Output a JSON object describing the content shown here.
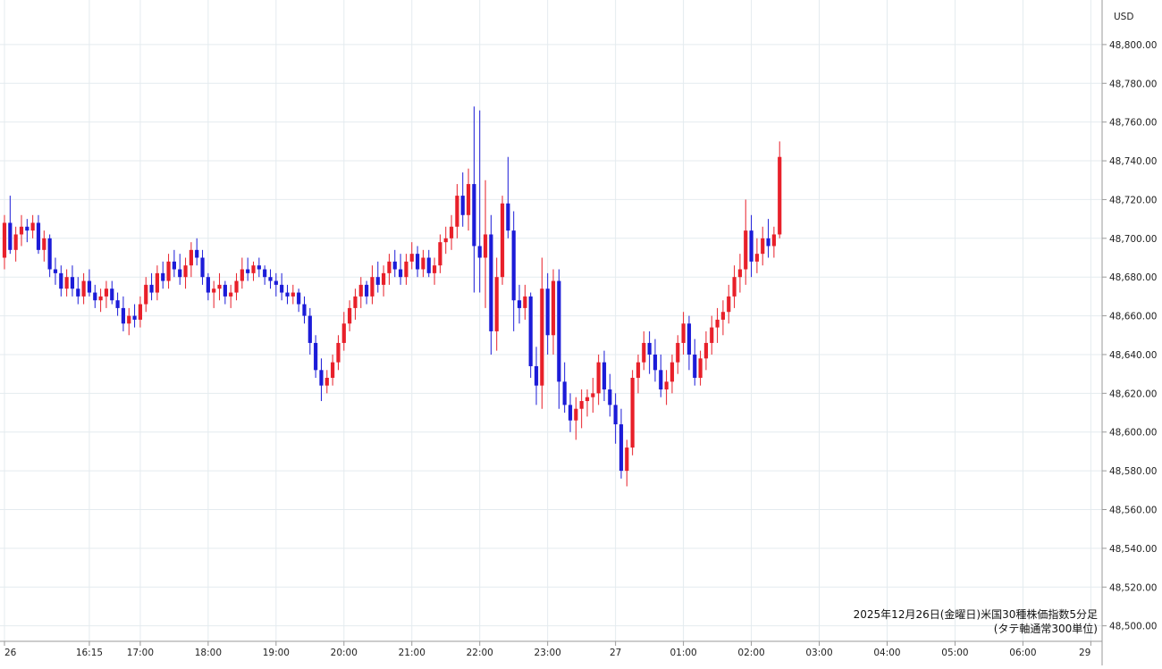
{
  "chart_data": {
    "type": "candlestick",
    "currency": "USD",
    "note_lines": [
      "2025年12月26日(金曜日)米国30種株価指数5分足",
      "(タテ軸通常300単位)"
    ],
    "y_ticks": [
      48500,
      48520,
      48540,
      48560,
      48580,
      48600,
      48620,
      48640,
      48660,
      48680,
      48700,
      48720,
      48740,
      48760,
      48780,
      48800
    ],
    "y_tick_labels": [
      "48,500.00",
      "48,520.00",
      "48,540.00",
      "48,560.00",
      "48,580.00",
      "48,600.00",
      "48,620.00",
      "48,640.00",
      "48,660.00",
      "48,680.00",
      "48,700.00",
      "48,720.00",
      "48,740.00",
      "48,760.00",
      "48,780.00",
      "48,800.00"
    ],
    "ylim": [
      48492,
      48823
    ],
    "x_ticks": [
      {
        "index": 0,
        "label": "26"
      },
      {
        "index": 15,
        "label": "16:15"
      },
      {
        "index": 24,
        "label": "17:00"
      },
      {
        "index": 36,
        "label": "18:00"
      },
      {
        "index": 48,
        "label": "19:00"
      },
      {
        "index": 60,
        "label": "20:00"
      },
      {
        "index": 72,
        "label": "21:00"
      },
      {
        "index": 84,
        "label": "22:00"
      },
      {
        "index": 96,
        "label": "23:00"
      },
      {
        "index": 108,
        "label": "27"
      },
      {
        "index": 120,
        "label": "01:00"
      },
      {
        "index": 132,
        "label": "02:00"
      },
      {
        "index": 144,
        "label": "03:00"
      },
      {
        "index": 156,
        "label": "04:00"
      },
      {
        "index": 168,
        "label": "05:00"
      },
      {
        "index": 180,
        "label": "06:00"
      },
      {
        "index": 192,
        "label": "29"
      }
    ],
    "up_color": "#e8202a",
    "down_color": "#1c1cd8",
    "candles": [
      [
        48690,
        48712,
        48684,
        48708
      ],
      [
        48708,
        48722,
        48692,
        48694
      ],
      [
        48694,
        48706,
        48688,
        48702
      ],
      [
        48702,
        48712,
        48696,
        48706
      ],
      [
        48706,
        48710,
        48698,
        48704
      ],
      [
        48704,
        48712,
        48700,
        48708
      ],
      [
        48708,
        48712,
        48692,
        48694
      ],
      [
        48694,
        48704,
        48688,
        48700
      ],
      [
        48700,
        48702,
        48680,
        48684
      ],
      [
        48684,
        48690,
        48676,
        48682
      ],
      [
        48682,
        48686,
        48670,
        48674
      ],
      [
        48674,
        48684,
        48670,
        48680
      ],
      [
        48680,
        48686,
        48670,
        48674
      ],
      [
        48674,
        48680,
        48666,
        48670
      ],
      [
        48670,
        48682,
        48666,
        48678
      ],
      [
        48678,
        48684,
        48670,
        48672
      ],
      [
        48672,
        48676,
        48664,
        48668
      ],
      [
        48668,
        48674,
        48662,
        48670
      ],
      [
        48670,
        48678,
        48664,
        48674
      ],
      [
        48674,
        48678,
        48666,
        48668
      ],
      [
        48668,
        48672,
        48660,
        48664
      ],
      [
        48664,
        48670,
        48652,
        48656
      ],
      [
        48656,
        48664,
        48650,
        48660
      ],
      [
        48660,
        48666,
        48654,
        48658
      ],
      [
        48658,
        48670,
        48654,
        48666
      ],
      [
        48666,
        48680,
        48662,
        48676
      ],
      [
        48676,
        48682,
        48668,
        48672
      ],
      [
        48672,
        48686,
        48668,
        48682
      ],
      [
        48682,
        48688,
        48674,
        48678
      ],
      [
        48678,
        48692,
        48674,
        48688
      ],
      [
        48688,
        48694,
        48680,
        48684
      ],
      [
        48684,
        48692,
        48676,
        48680
      ],
      [
        48680,
        48690,
        48674,
        48686
      ],
      [
        48686,
        48698,
        48680,
        48694
      ],
      [
        48694,
        48700,
        48686,
        48690
      ],
      [
        48690,
        48694,
        48676,
        48680
      ],
      [
        48680,
        48682,
        48668,
        48672
      ],
      [
        48672,
        48678,
        48664,
        48674
      ],
      [
        48674,
        48682,
        48668,
        48676
      ],
      [
        48676,
        48678,
        48666,
        48670
      ],
      [
        48670,
        48676,
        48664,
        48672
      ],
      [
        48672,
        48682,
        48668,
        48678
      ],
      [
        48678,
        48690,
        48674,
        48684
      ],
      [
        48684,
        48690,
        48678,
        48682
      ],
      [
        48682,
        48688,
        48678,
        48686
      ],
      [
        48686,
        48690,
        48680,
        48684
      ],
      [
        48684,
        48686,
        48676,
        48680
      ],
      [
        48680,
        48684,
        48674,
        48678
      ],
      [
        48678,
        48682,
        48670,
        48676
      ],
      [
        48676,
        48682,
        48668,
        48672
      ],
      [
        48672,
        48676,
        48666,
        48670
      ],
      [
        48670,
        48676,
        48666,
        48672
      ],
      [
        48672,
        48674,
        48662,
        48666
      ],
      [
        48666,
        48670,
        48656,
        48660
      ],
      [
        48660,
        48664,
        48640,
        48646
      ],
      [
        48646,
        48650,
        48628,
        48632
      ],
      [
        48632,
        48638,
        48616,
        48624
      ],
      [
        48624,
        48632,
        48620,
        48628
      ],
      [
        48628,
        48640,
        48624,
        48636
      ],
      [
        48636,
        48650,
        48632,
        48646
      ],
      [
        48646,
        48662,
        48642,
        48656
      ],
      [
        48656,
        48668,
        48652,
        48664
      ],
      [
        48664,
        48674,
        48658,
        48670
      ],
      [
        48670,
        48680,
        48664,
        48676
      ],
      [
        48676,
        48678,
        48666,
        48670
      ],
      [
        48670,
        48686,
        48666,
        48680
      ],
      [
        48680,
        48688,
        48672,
        48676
      ],
      [
        48676,
        48686,
        48670,
        48682
      ],
      [
        48682,
        48692,
        48676,
        48688
      ],
      [
        48688,
        48694,
        48680,
        48684
      ],
      [
        48684,
        48692,
        48676,
        48680
      ],
      [
        48680,
        48692,
        48676,
        48688
      ],
      [
        48688,
        48698,
        48684,
        48692
      ],
      [
        48692,
        48696,
        48680,
        48684
      ],
      [
        48684,
        48694,
        48680,
        48690
      ],
      [
        48690,
        48694,
        48680,
        48682
      ],
      [
        48682,
        48690,
        48676,
        48686
      ],
      [
        48686,
        48702,
        48682,
        48698
      ],
      [
        48698,
        48706,
        48692,
        48700
      ],
      [
        48700,
        48712,
        48694,
        48706
      ],
      [
        48706,
        48728,
        48700,
        48722
      ],
      [
        48722,
        48734,
        48706,
        48712
      ],
      [
        48712,
        48736,
        48704,
        48728
      ],
      [
        48728,
        48768,
        48672,
        48696
      ],
      [
        48696,
        48766,
        48672,
        48690
      ],
      [
        48690,
        48730,
        48664,
        48702
      ],
      [
        48702,
        48712,
        48640,
        48652
      ],
      [
        48652,
        48690,
        48642,
        48680
      ],
      [
        48680,
        48722,
        48676,
        48718
      ],
      [
        48718,
        48742,
        48700,
        48704
      ],
      [
        48704,
        48714,
        48652,
        48668
      ],
      [
        48668,
        48676,
        48656,
        48664
      ],
      [
        48664,
        48676,
        48658,
        48670
      ],
      [
        48670,
        48672,
        48628,
        48634
      ],
      [
        48634,
        48644,
        48614,
        48624
      ],
      [
        48624,
        48690,
        48612,
        48674
      ],
      [
        48674,
        48682,
        48640,
        48650
      ],
      [
        48650,
        48684,
        48640,
        48678
      ],
      [
        48678,
        48684,
        48612,
        48626
      ],
      [
        48626,
        48636,
        48610,
        48614
      ],
      [
        48614,
        48620,
        48600,
        48606
      ],
      [
        48606,
        48618,
        48596,
        48612
      ],
      [
        48612,
        48622,
        48602,
        48616
      ],
      [
        48616,
        48622,
        48608,
        48618
      ],
      [
        48618,
        48628,
        48610,
        48620
      ],
      [
        48620,
        48640,
        48614,
        48636
      ],
      [
        48636,
        48642,
        48616,
        48622
      ],
      [
        48622,
        48630,
        48608,
        48614
      ],
      [
        48614,
        48620,
        48594,
        48604
      ],
      [
        48604,
        48612,
        48576,
        48580
      ],
      [
        48580,
        48596,
        48572,
        48592
      ],
      [
        48592,
        48632,
        48588,
        48628
      ],
      [
        48628,
        48640,
        48620,
        48636
      ],
      [
        48636,
        48652,
        48632,
        48646
      ],
      [
        48646,
        48652,
        48630,
        48640
      ],
      [
        48640,
        48648,
        48626,
        48632
      ],
      [
        48632,
        48640,
        48618,
        48622
      ],
      [
        48622,
        48632,
        48614,
        48626
      ],
      [
        48626,
        48640,
        48620,
        48636
      ],
      [
        48636,
        48650,
        48630,
        48646
      ],
      [
        48646,
        48662,
        48640,
        48656
      ],
      [
        48656,
        48660,
        48632,
        48640
      ],
      [
        48640,
        48648,
        48624,
        48628
      ],
      [
        48628,
        48642,
        48624,
        48638
      ],
      [
        48638,
        48652,
        48632,
        48646
      ],
      [
        48646,
        48660,
        48640,
        48654
      ],
      [
        48654,
        48664,
        48646,
        48658
      ],
      [
        48658,
        48668,
        48650,
        48662
      ],
      [
        48662,
        48676,
        48656,
        48670
      ],
      [
        48670,
        48686,
        48664,
        48680
      ],
      [
        48680,
        48692,
        48672,
        48684
      ],
      [
        48684,
        48720,
        48676,
        48704
      ],
      [
        48704,
        48712,
        48680,
        48688
      ],
      [
        48688,
        48700,
        48682,
        48692
      ],
      [
        48692,
        48706,
        48686,
        48700
      ],
      [
        48700,
        48710,
        48690,
        48696
      ],
      [
        48696,
        48706,
        48690,
        48702
      ],
      [
        48702,
        48750,
        48700,
        48742
      ]
    ]
  }
}
